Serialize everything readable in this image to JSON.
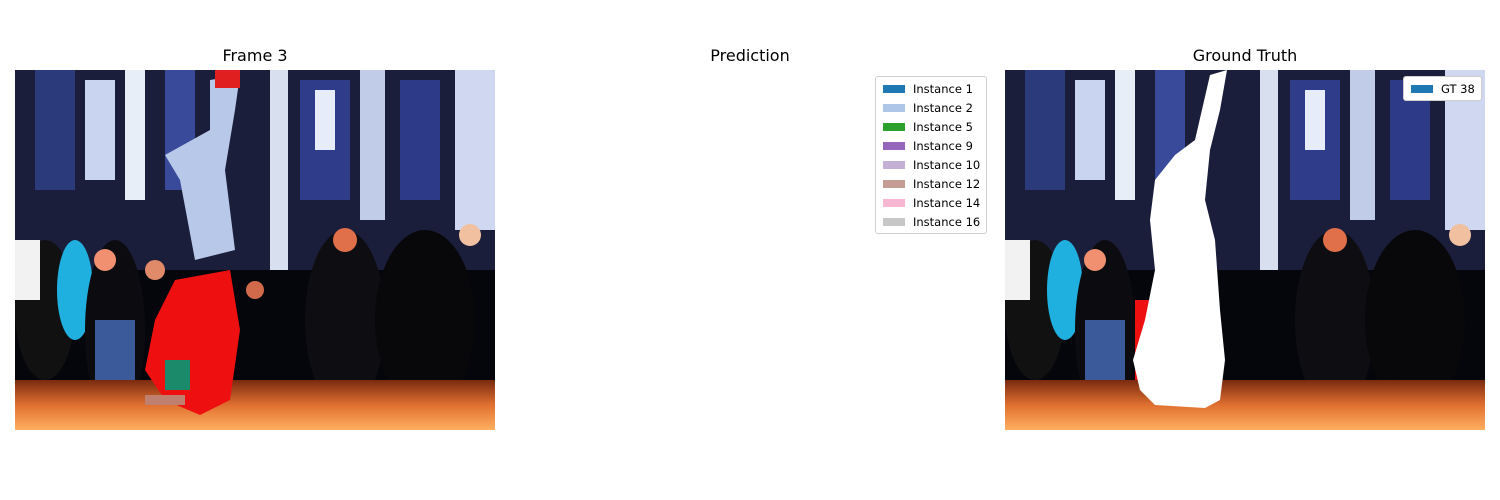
{
  "panels": {
    "frame": {
      "title": "Frame 3"
    },
    "prediction": {
      "title": "Prediction",
      "legend": [
        {
          "label": "Instance 1",
          "color": "#1f77b4"
        },
        {
          "label": "Instance 2",
          "color": "#aec7e8"
        },
        {
          "label": "Instance 5",
          "color": "#2ca02c"
        },
        {
          "label": "Instance 9",
          "color": "#9467bd"
        },
        {
          "label": "Instance 10",
          "color": "#c5b0d5"
        },
        {
          "label": "Instance 12",
          "color": "#c49c94"
        },
        {
          "label": "Instance 14",
          "color": "#f7b6d2"
        },
        {
          "label": "Instance 16",
          "color": "#c7c7c7"
        }
      ]
    },
    "ground_truth": {
      "title": "Ground Truth",
      "legend": [
        {
          "label": "GT 38",
          "color": "#1f77b4"
        }
      ],
      "mask_color": "#ffffff"
    }
  }
}
